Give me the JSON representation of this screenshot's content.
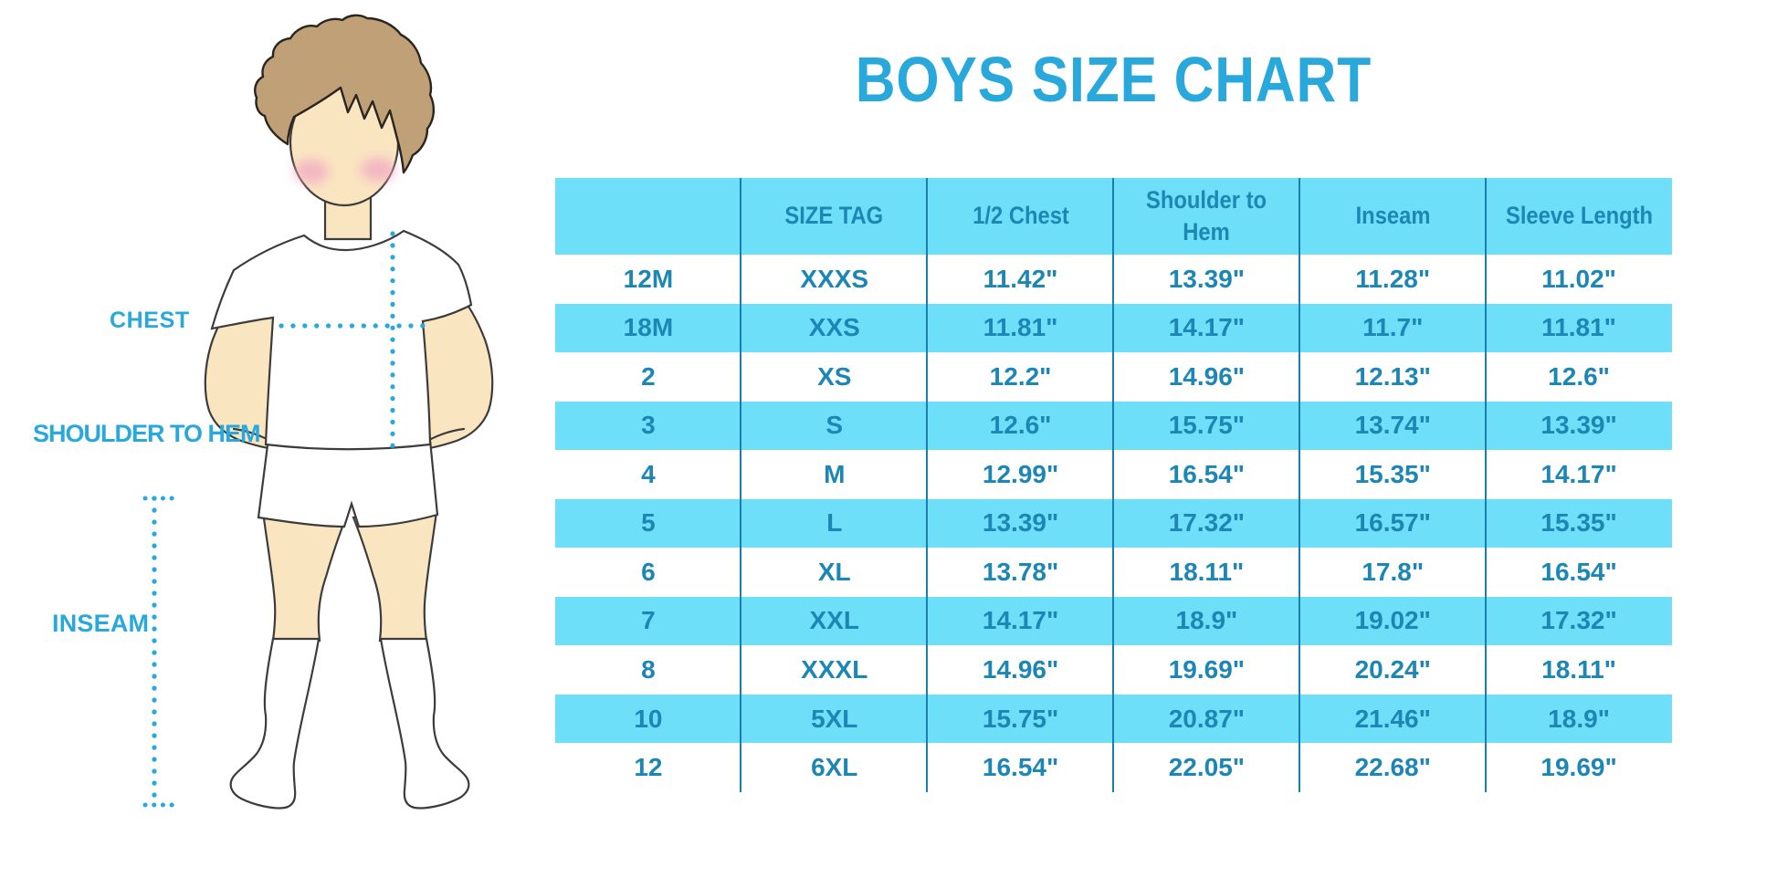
{
  "title": "BOYS SIZE CHART",
  "colors": {
    "page": "#ffffff",
    "cyan": "#6edff8",
    "table-text": "#1c86b5",
    "divider": "#1a7fae",
    "azure": "#29a8db",
    "skin": "#fae5c1",
    "hair": "#c0a076",
    "hair-outline": "#2b2520",
    "outline": "#3c3c3c",
    "blush": "#f2abc2",
    "garment": "#ffffff"
  },
  "figure": {
    "chest_label": "CHEST",
    "shoulder_to_hem_label": "SHOULDER TO HEM",
    "inseam_label": "INSEAM"
  },
  "chart_data": {
    "type": "table",
    "title": "BOYS SIZE CHART",
    "columns": [
      "",
      "SIZE TAG",
      "1/2 Chest",
      "Shoulder to Hem",
      "Inseam",
      "Sleeve Length"
    ],
    "rows": [
      [
        "12M",
        "XXXS",
        "11.42\"",
        "13.39\"",
        "11.28\"",
        "11.02\""
      ],
      [
        "18M",
        "XXS",
        "11.81\"",
        "14.17\"",
        "11.7\"",
        "11.81\""
      ],
      [
        "2",
        "XS",
        "12.2\"",
        "14.96\"",
        "12.13\"",
        "12.6\""
      ],
      [
        "3",
        "S",
        "12.6\"",
        "15.75\"",
        "13.74\"",
        "13.39\""
      ],
      [
        "4",
        "M",
        "12.99\"",
        "16.54\"",
        "15.35\"",
        "14.17\""
      ],
      [
        "5",
        "L",
        "13.39\"",
        "17.32\"",
        "16.57\"",
        "15.35\""
      ],
      [
        "6",
        "XL",
        "13.78\"",
        "18.11\"",
        "17.8\"",
        "16.54\""
      ],
      [
        "7",
        "XXL",
        "14.17\"",
        "18.9\"",
        "19.02\"",
        "17.32\""
      ],
      [
        "8",
        "XXXL",
        "14.96\"",
        "19.69\"",
        "20.24\"",
        "18.11\""
      ],
      [
        "10",
        "5XL",
        "15.75\"",
        "20.87\"",
        "21.46\"",
        "18.9\""
      ],
      [
        "12",
        "6XL",
        "16.54\"",
        "22.05\"",
        "22.68\"",
        "19.69\""
      ]
    ]
  }
}
